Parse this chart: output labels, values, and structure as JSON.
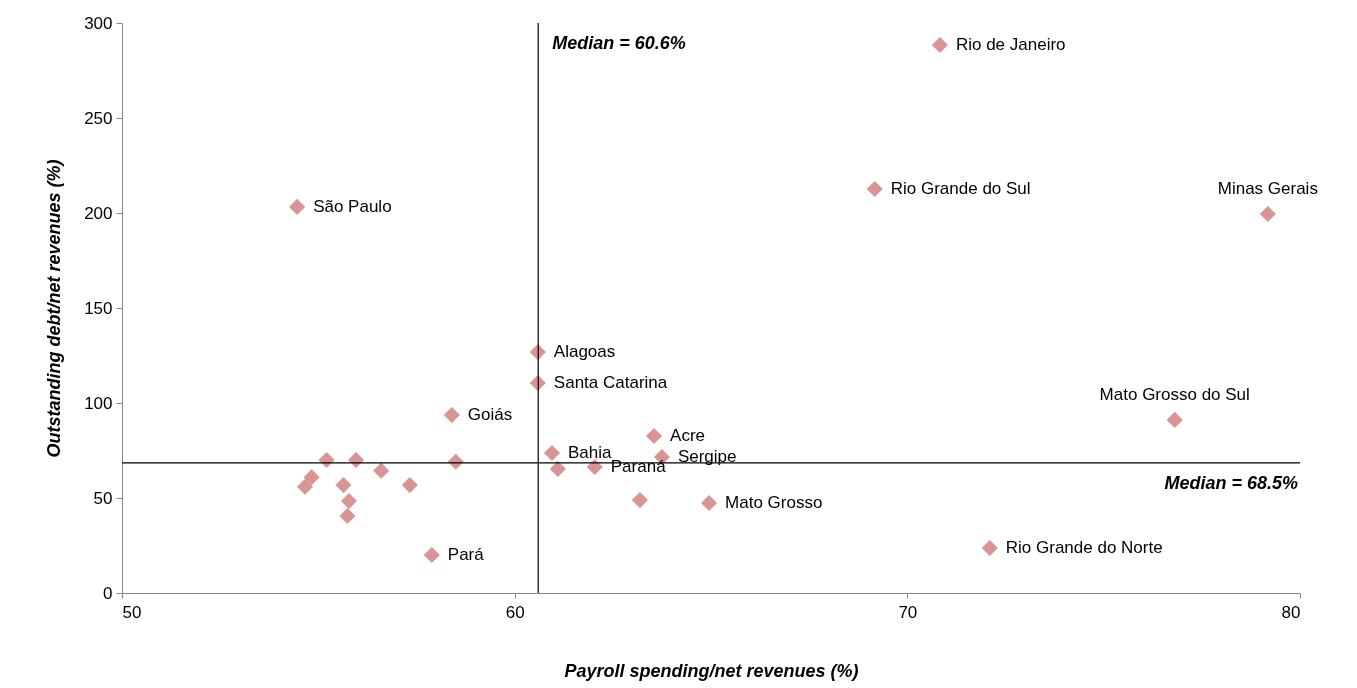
{
  "chart_data": {
    "type": "scatter",
    "xlabel": "Payroll spending/net revenues (%)",
    "ylabel": "Outstanding debt/net revenues (%)",
    "x": [
      70.83,
      69.17,
      79.18,
      54.46,
      60.59,
      60.59,
      58.4,
      60.95,
      62.04,
      61.1,
      63.55,
      63.75,
      63.19,
      64.95,
      72.1,
      76.81,
      57.89,
      55.21,
      55.96,
      56.6,
      57.33,
      58.5,
      54.83,
      54.66,
      55.64,
      55.78,
      55.74
    ],
    "series": [
      {
        "color": "#d99594",
        "values": [
          288.4,
          212.6,
          199.5,
          203.2,
          126.8,
          110.5,
          93.7,
          73.7,
          66.3,
          65.3,
          82.6,
          71.6,
          48.9,
          47.4,
          23.7,
          91.1,
          20.0,
          70.0,
          70.0,
          64.4,
          56.8,
          69.1,
          60.9,
          55.9,
          56.8,
          48.4,
          40.5
        ]
      }
    ],
    "marker": "diamond",
    "xlim": [
      50,
      80
    ],
    "xticks": [
      50,
      60,
      70,
      80
    ],
    "ylim": [
      0,
      300
    ],
    "yticks": [
      0,
      50,
      100,
      150,
      200,
      250,
      300
    ],
    "grid": false,
    "ref_lines": [
      {
        "axis": "x",
        "value": 60.6,
        "label": "Median = 60.6%"
      },
      {
        "axis": "y",
        "value": 68.5,
        "label": "Median = 68.5%"
      }
    ],
    "annotations": [
      {
        "text": "Rio de Janeiro",
        "x": 70.83,
        "y": 288.4
      },
      {
        "text": "Rio Grande do Sul",
        "x": 69.17,
        "y": 212.6
      },
      {
        "text": "Minas Gerais",
        "x": 79.18,
        "y": 199.5
      },
      {
        "text": "São Paulo",
        "x": 54.46,
        "y": 203.2
      },
      {
        "text": "Alagoas",
        "x": 60.59,
        "y": 126.8
      },
      {
        "text": "Santa Catarina",
        "x": 60.59,
        "y": 110.5
      },
      {
        "text": "Goiás",
        "x": 58.4,
        "y": 93.7
      },
      {
        "text": "Bahia",
        "x": 60.95,
        "y": 73.7
      },
      {
        "text": "Paraná",
        "x": 62.04,
        "y": 66.3
      },
      {
        "text": "Acre",
        "x": 63.55,
        "y": 82.6
      },
      {
        "text": "Sergipe",
        "x": 63.75,
        "y": 71.6
      },
      {
        "text": "Mato Grosso",
        "x": 64.95,
        "y": 47.4
      },
      {
        "text": "Rio Grande do Norte",
        "x": 72.1,
        "y": 23.7
      },
      {
        "text": "Mato Grosso do Sul",
        "x": 76.81,
        "y": 91.1
      },
      {
        "text": "Pará",
        "x": 57.89,
        "y": 20.0
      }
    ]
  }
}
